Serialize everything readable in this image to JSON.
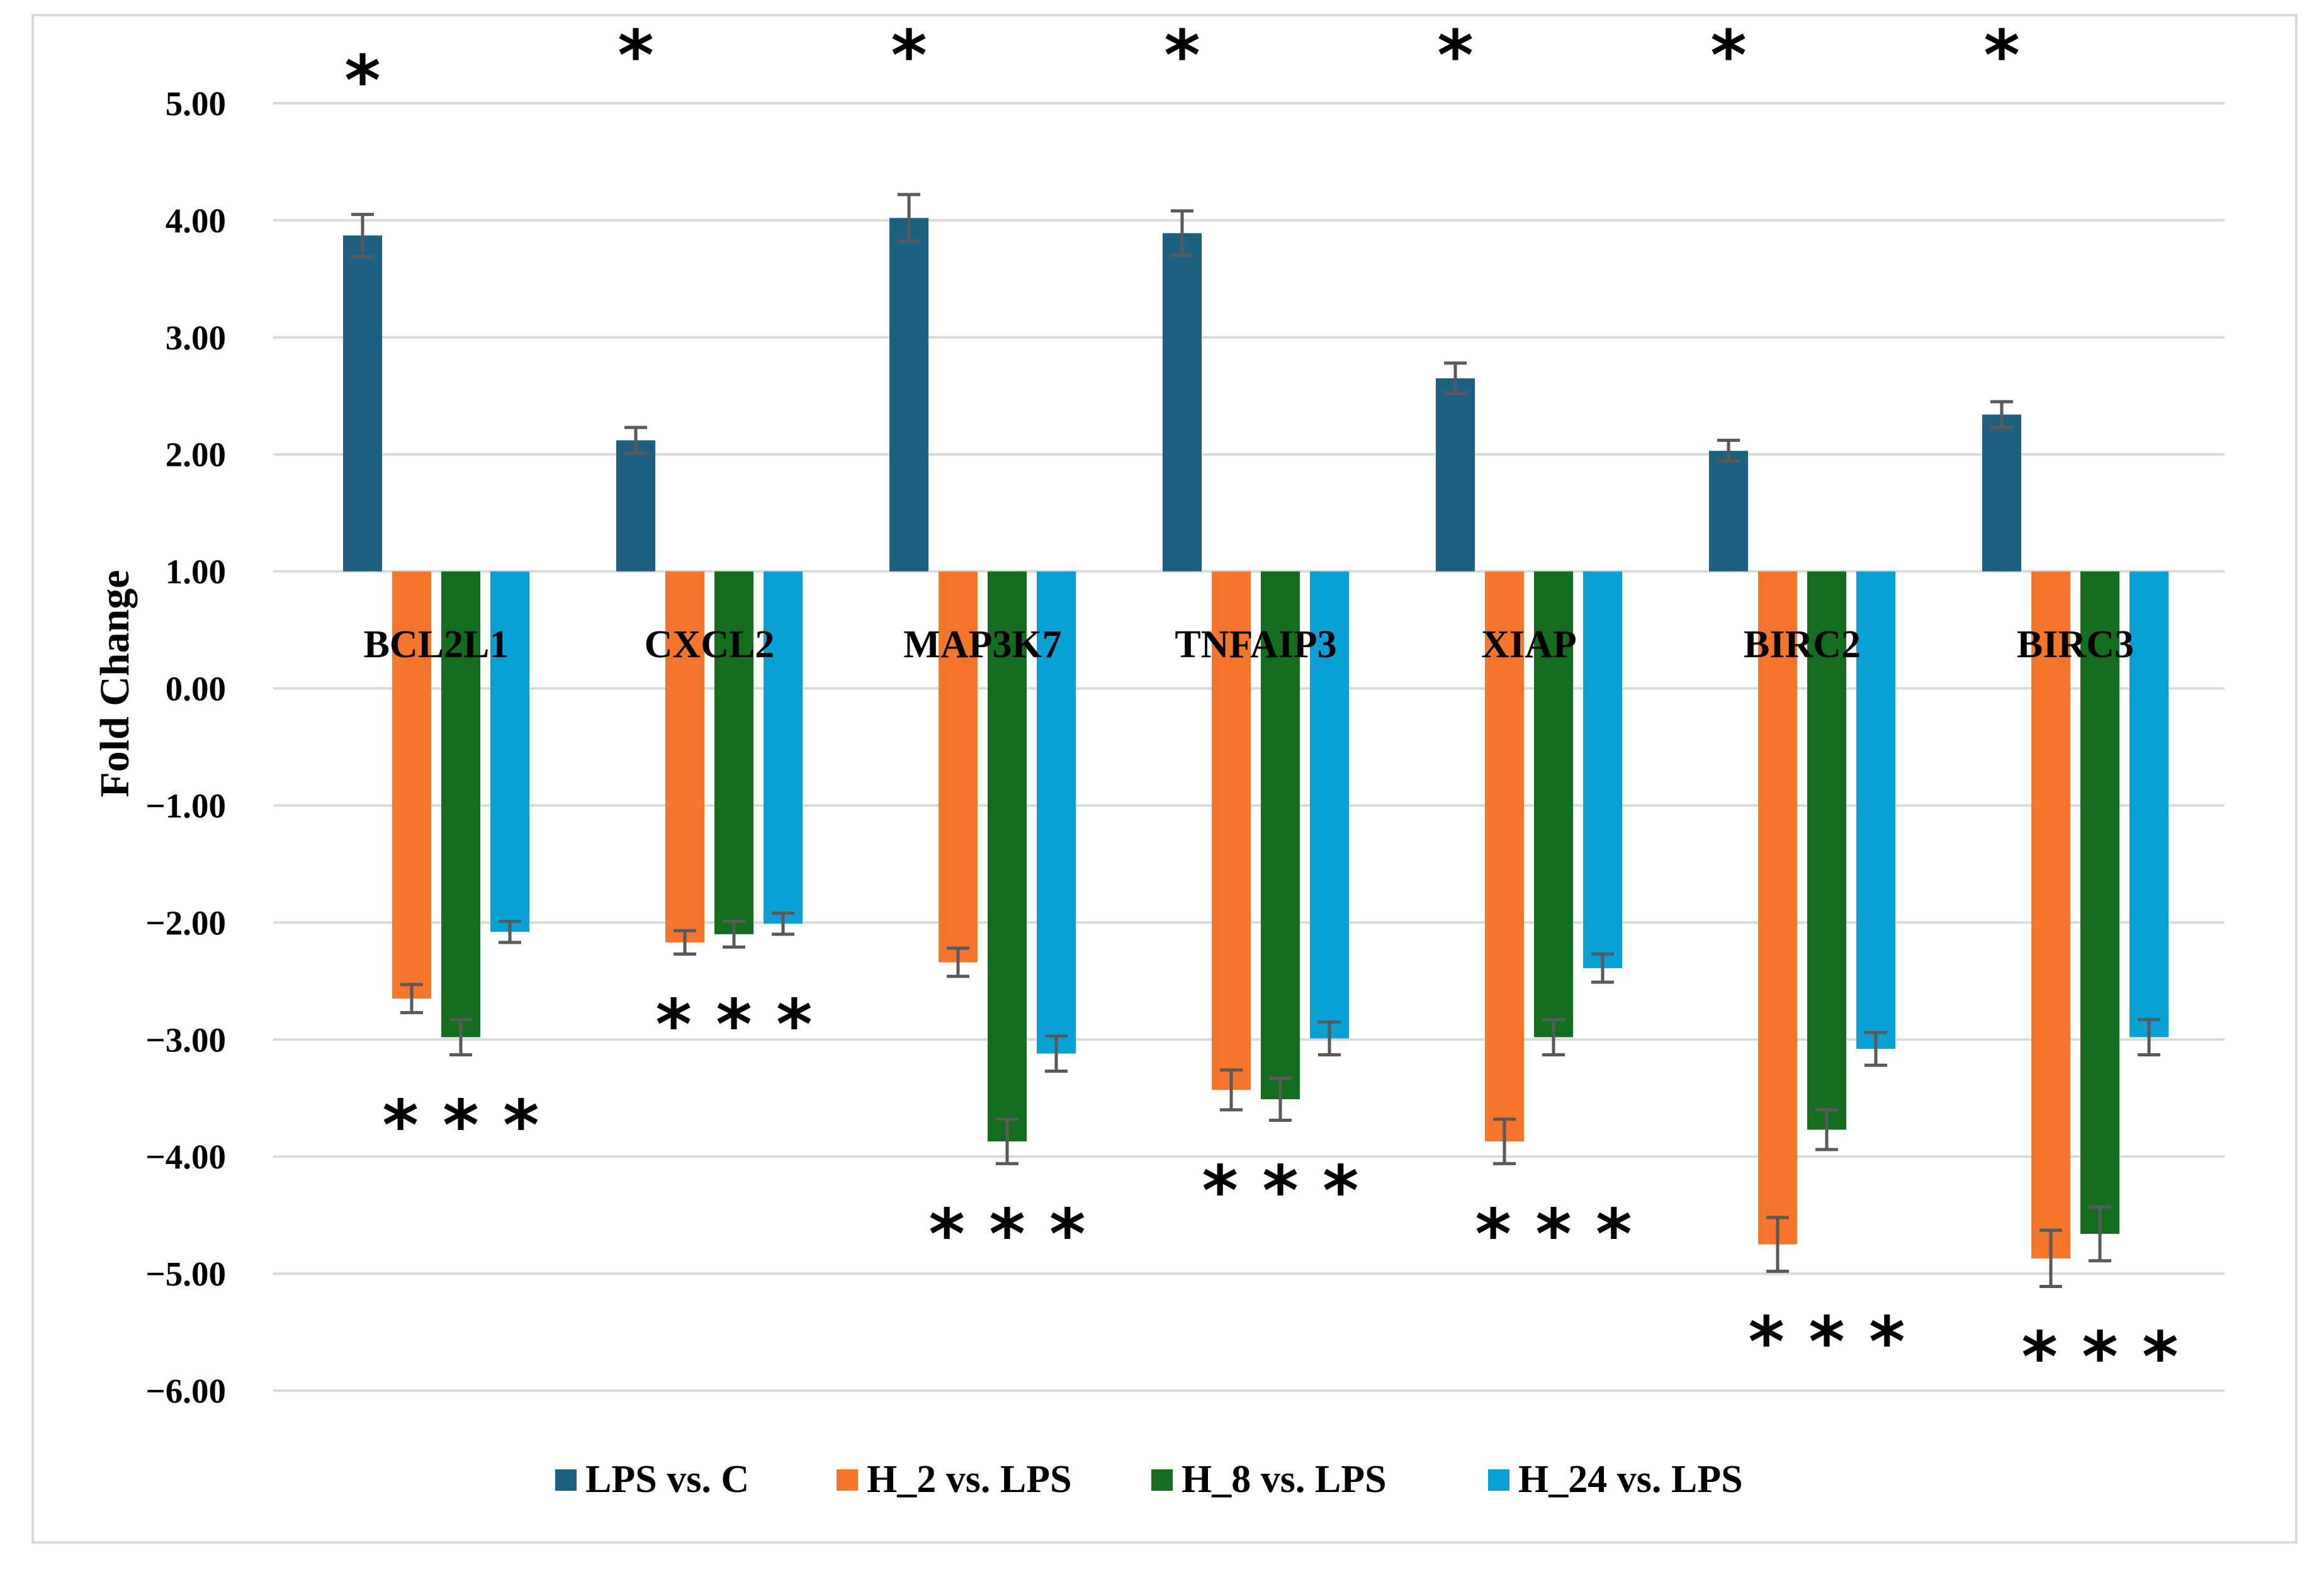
{
  "chart_data": {
    "type": "bar",
    "title": "",
    "xlabel": "",
    "ylabel": "Fold Change",
    "ylim": [
      -6,
      5
    ],
    "baseline": 1,
    "yticks": [
      "5.00",
      "4.00",
      "3.00",
      "2.00",
      "1.00",
      "0.00",
      "−1.00",
      "−2.00",
      "−3.00",
      "−4.00",
      "−5.00",
      "−6.00"
    ],
    "ytick_values": [
      5,
      4,
      3,
      2,
      1,
      0,
      -1,
      -2,
      -3,
      -4,
      -5,
      -6
    ],
    "grid": true,
    "legend_position": "bottom",
    "categories": [
      "BCL2L1",
      "CXCL2",
      "MAP3K7",
      "TNFAIP3",
      "XIAP",
      "BIRC2",
      "BIRC3"
    ],
    "series": [
      {
        "name": "LPS vs. C",
        "color": "#1f6080",
        "values": [
          3.87,
          2.12,
          4.02,
          3.89,
          2.65,
          2.03,
          2.34
        ],
        "errors": [
          0.18,
          0.11,
          0.2,
          0.19,
          0.13,
          0.09,
          0.11
        ]
      },
      {
        "name": "H_2 vs. LPS",
        "color": "#f4762c",
        "values": [
          -2.65,
          -2.17,
          -2.34,
          -3.43,
          -3.87,
          -4.75,
          -4.87
        ],
        "errors": [
          0.12,
          0.1,
          0.12,
          0.17,
          0.19,
          0.23,
          0.24
        ]
      },
      {
        "name": "H_8 vs. LPS",
        "color": "#146c1f",
        "values": [
          -2.98,
          -2.1,
          -3.87,
          -3.51,
          -2.98,
          -3.77,
          -4.66
        ],
        "errors": [
          0.15,
          0.11,
          0.19,
          0.18,
          0.15,
          0.17,
          0.23
        ]
      },
      {
        "name": "H_24 vs. LPS",
        "color": "#0aa0d4",
        "values": [
          -2.08,
          -2.01,
          -3.12,
          -2.99,
          -2.39,
          -3.08,
          -2.98
        ],
        "errors": [
          0.09,
          0.09,
          0.15,
          0.14,
          0.12,
          0.14,
          0.15
        ]
      }
    ],
    "annotations": {
      "top_marks": [
        "*",
        "*",
        "*",
        "*",
        "*",
        "*",
        "*"
      ],
      "bottom_marks": [
        "* * *",
        "* * *",
        "* * *",
        "* * *",
        "* * *",
        "* * *",
        "* * *"
      ]
    }
  }
}
